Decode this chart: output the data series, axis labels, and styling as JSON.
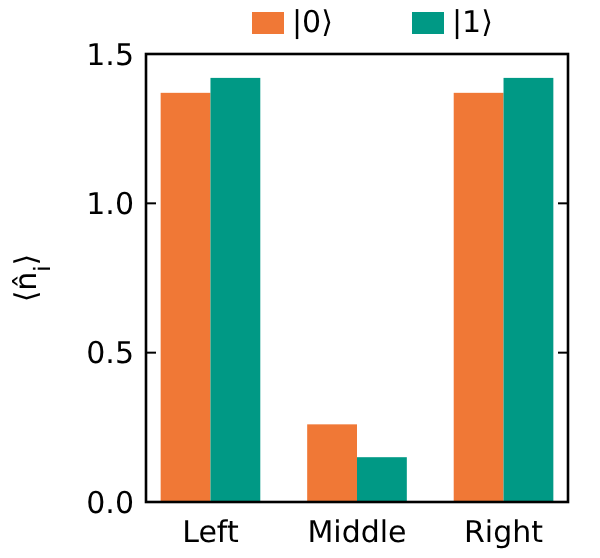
{
  "chart_data": {
    "type": "bar",
    "ylabel": "⟨n̂$_{i}$⟩",
    "categories": [
      "Left",
      "Middle",
      "Right"
    ],
    "series": [
      {
        "name": "|0⟩",
        "color": "#f07836",
        "values": [
          1.37,
          0.26,
          1.37
        ]
      },
      {
        "name": "|1⟩",
        "color": "#009985",
        "values": [
          1.42,
          0.15,
          1.42
        ]
      }
    ],
    "ylim": [
      0,
      1.5
    ],
    "yticks": [
      {
        "value": 0,
        "label": "0.0"
      },
      {
        "value": 0.5,
        "label": "0.5"
      },
      {
        "value": 1,
        "label": "1.0"
      },
      {
        "value": 1.5,
        "label": "1.5"
      }
    ],
    "legend": "top",
    "grid": false
  }
}
